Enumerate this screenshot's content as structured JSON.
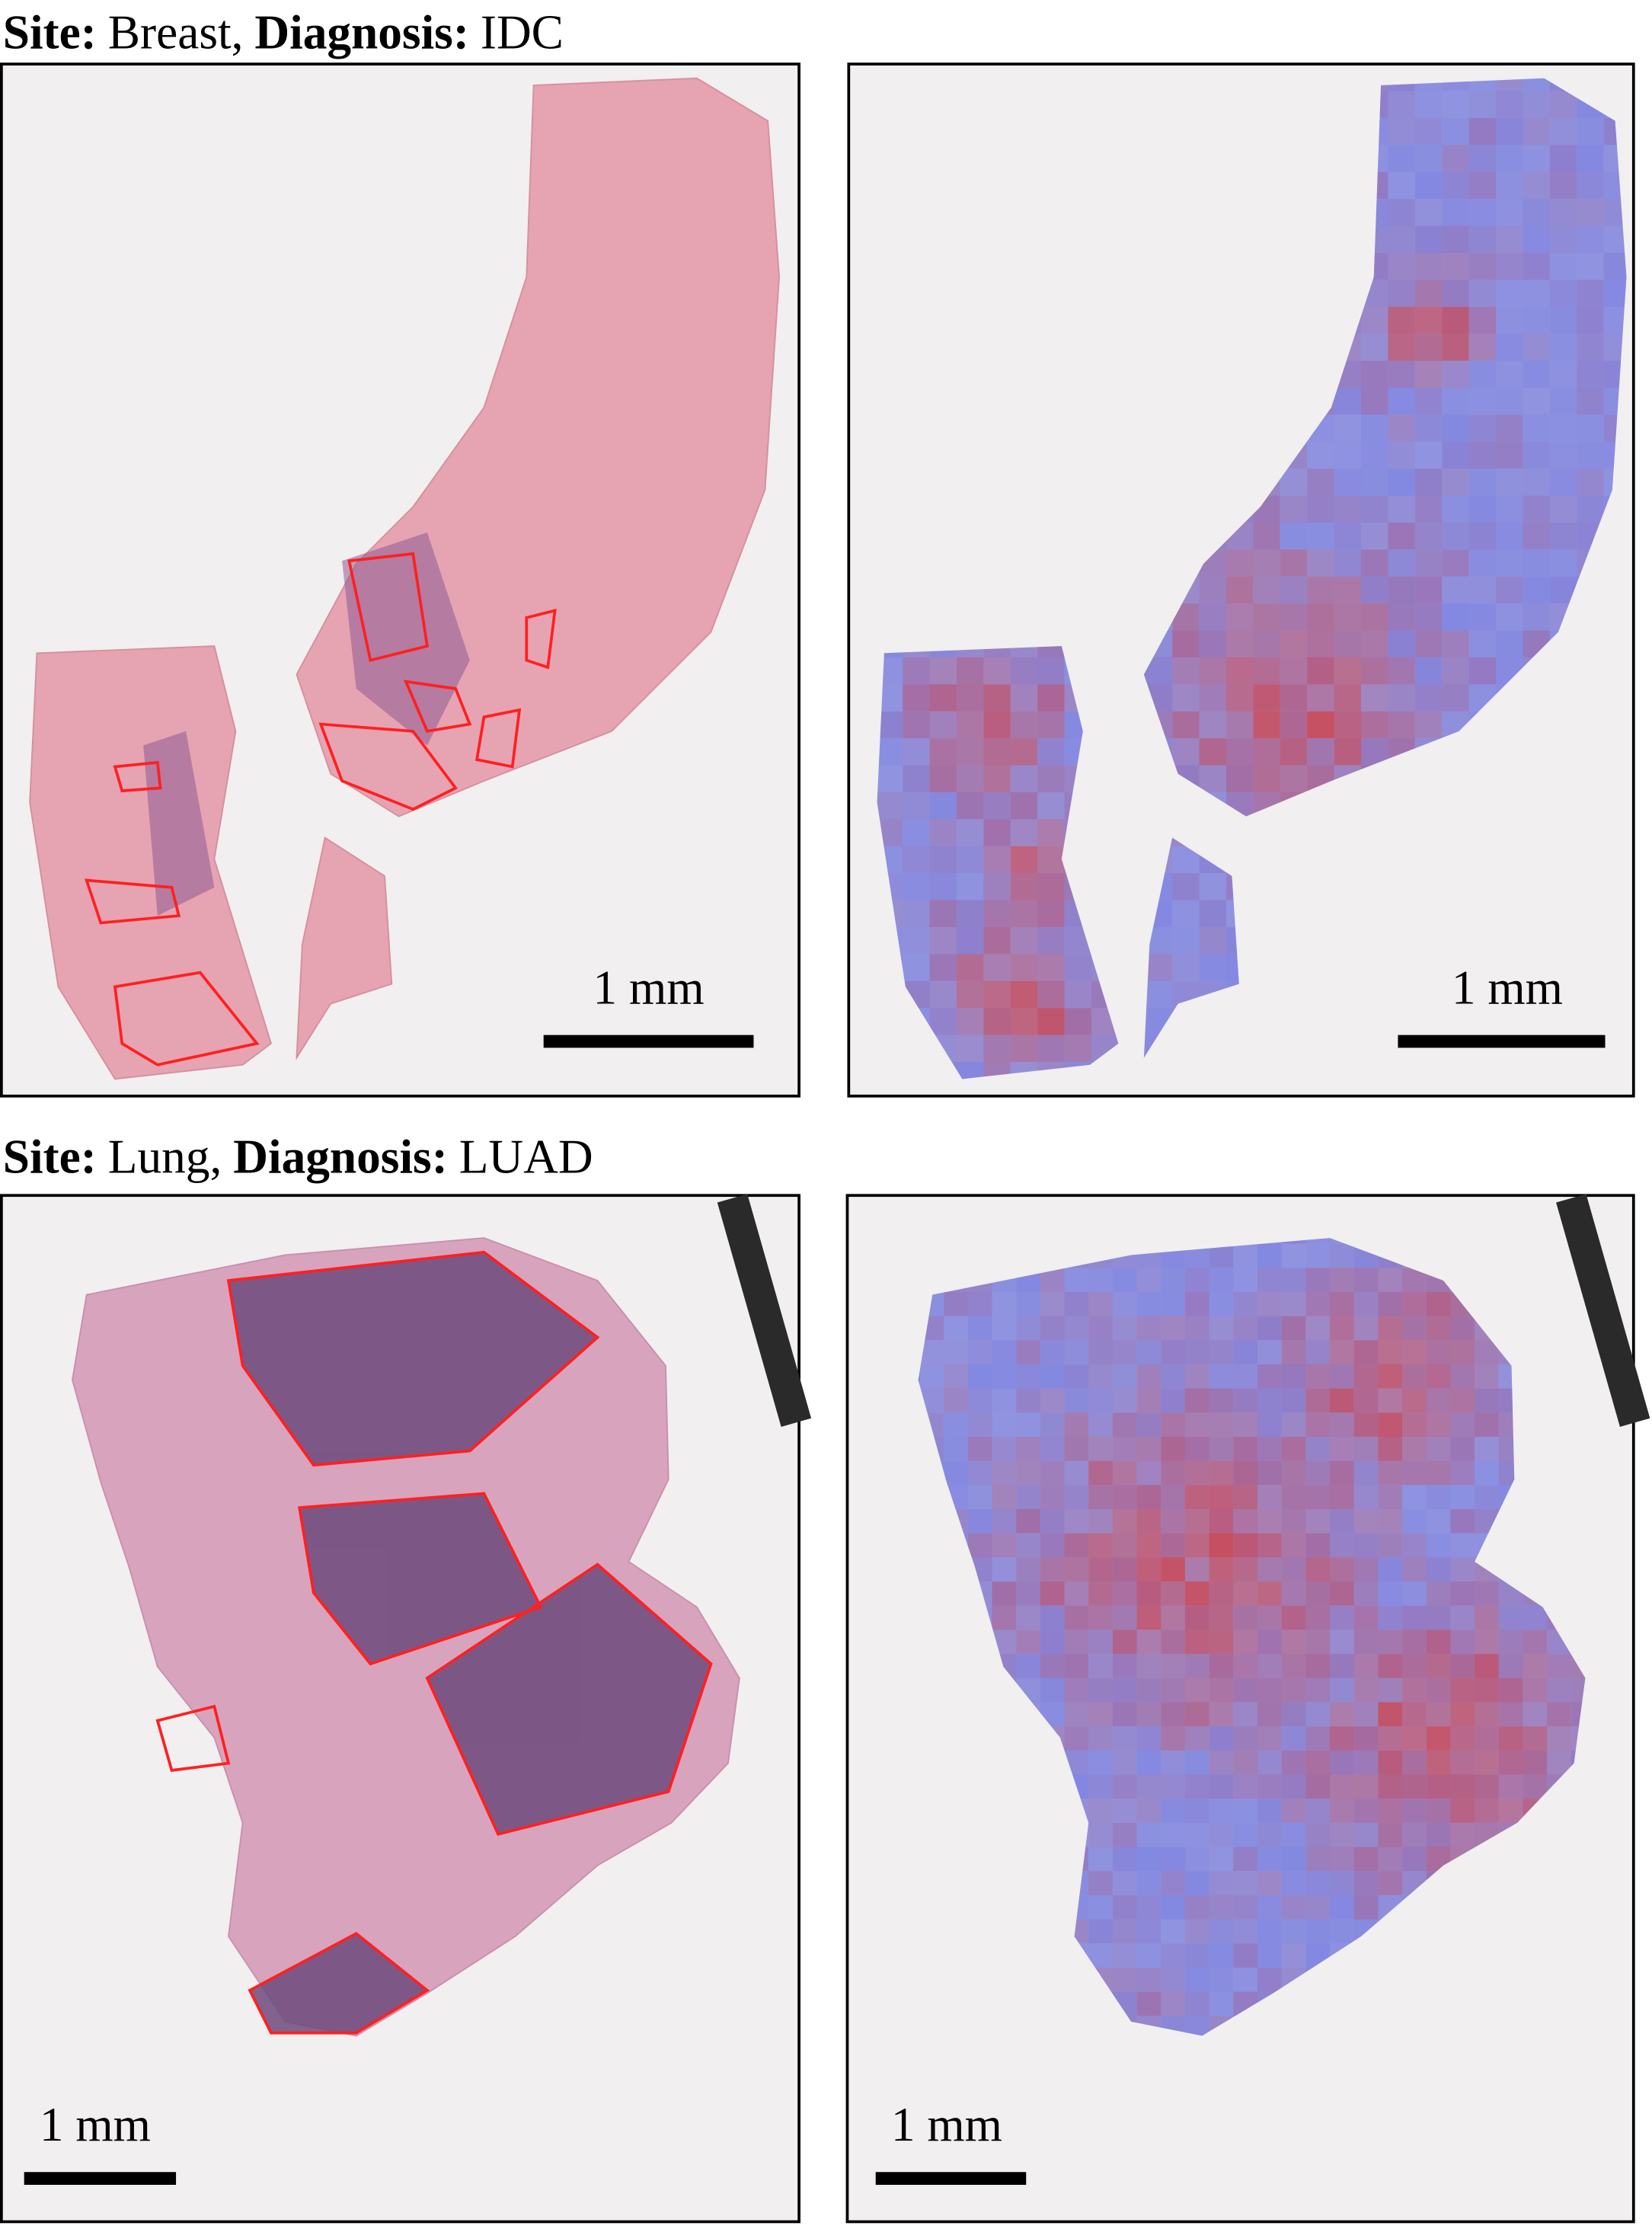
{
  "sections": [
    {
      "site_label": "Site:",
      "site": "Breast,",
      "diagnosis_label": "Diagnosis:",
      "diagnosis": "IDC",
      "scale_bars": [
        "1 mm",
        "1 mm"
      ]
    },
    {
      "site_label": "Site:",
      "site": "Lung,",
      "diagnosis_label": "Diagnosis:",
      "diagnosis": "LUAD",
      "scale_bars": [
        "1 mm",
        "1 mm"
      ]
    }
  ]
}
